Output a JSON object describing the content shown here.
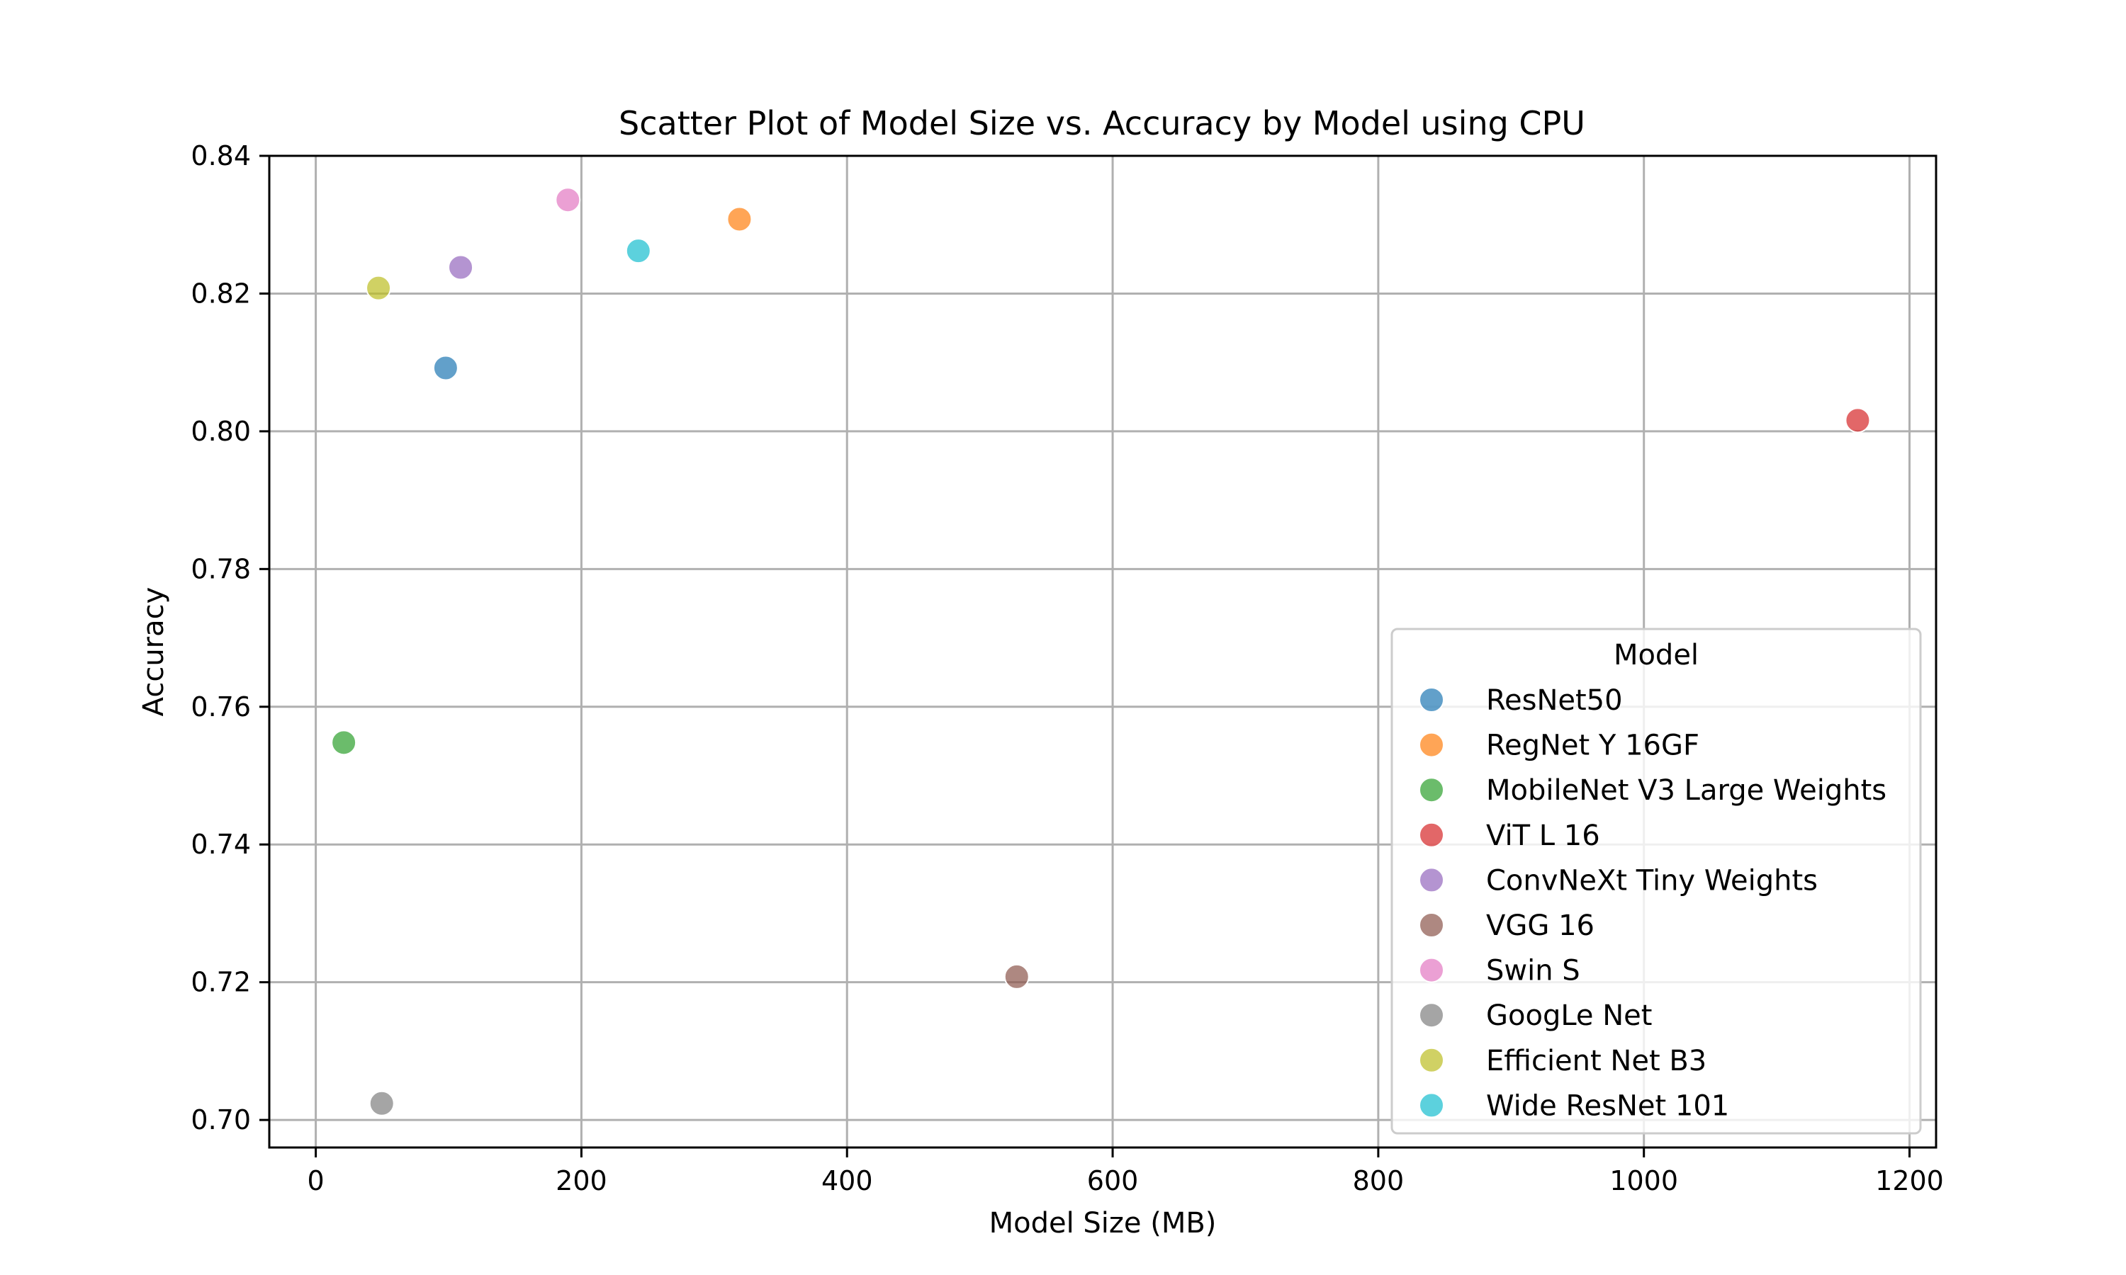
{
  "chart_data": {
    "type": "scatter",
    "title": "Scatter Plot of Model Size vs. Accuracy by Model using CPU",
    "xlabel": "Model Size (MB)",
    "ylabel": "Accuracy",
    "xlim": [
      -35,
      1220
    ],
    "ylim": [
      0.696,
      0.84
    ],
    "xticks": [
      0,
      200,
      400,
      600,
      800,
      1000,
      1200
    ],
    "yticks": [
      0.7,
      0.72,
      0.74,
      0.76,
      0.78,
      0.8,
      0.82,
      0.84
    ],
    "xtick_labels": [
      "0",
      "200",
      "400",
      "600",
      "800",
      "1000",
      "1200"
    ],
    "ytick_labels": [
      "0.70",
      "0.72",
      "0.74",
      "0.76",
      "0.78",
      "0.80",
      "0.82",
      "0.84"
    ],
    "grid": true,
    "legend": {
      "title": "Model",
      "placement": "lower-right"
    },
    "series": [
      {
        "name": "ResNet50",
        "color": "#1f77b4",
        "x": 97.8,
        "y": 0.8092
      },
      {
        "name": "RegNet Y 16GF",
        "color": "#ff7f0e",
        "x": 319,
        "y": 0.8308
      },
      {
        "name": "MobileNet V3 Large Weights",
        "color": "#2ca02c",
        "x": 21.1,
        "y": 0.7548
      },
      {
        "name": "ViT L 16",
        "color": "#d62728",
        "x": 1161,
        "y": 0.8016
      },
      {
        "name": "ConvNeXt Tiny Weights",
        "color": "#9467bd",
        "x": 109.1,
        "y": 0.8238
      },
      {
        "name": "VGG 16",
        "color": "#8c564b",
        "x": 527.8,
        "y": 0.7208
      },
      {
        "name": "Swin S",
        "color": "#e377c2",
        "x": 189.8,
        "y": 0.8336
      },
      {
        "name": "GoogLe Net",
        "color": "#7f7f7f",
        "x": 49.7,
        "y": 0.7024
      },
      {
        "name": "Efficient Net B3",
        "color": "#bcbd22",
        "x": 47.2,
        "y": 0.8208
      },
      {
        "name": "Wide ResNet 101",
        "color": "#17becf",
        "x": 242.9,
        "y": 0.8262
      }
    ]
  }
}
